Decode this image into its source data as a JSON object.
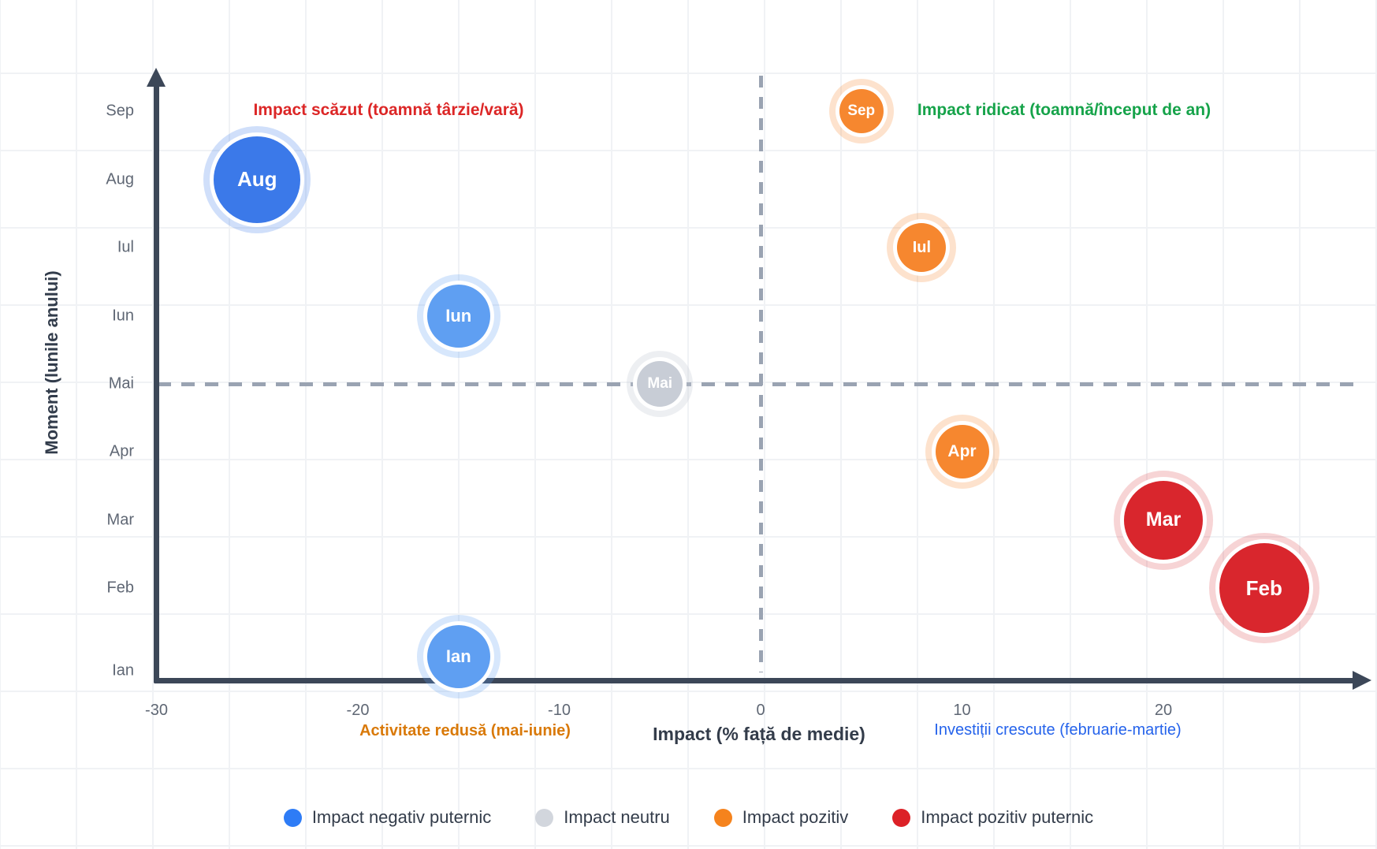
{
  "chart_data": {
    "type": "bubble",
    "xlabel": "Impact (% față de medie)",
    "ylabel": "Moment (lunile anului)",
    "xlim": [
      -30,
      30
    ],
    "x_ticks": [
      -30,
      -20,
      -10,
      0,
      10,
      20
    ],
    "y_categories": [
      "Ian",
      "Feb",
      "Mar",
      "Apr",
      "Mai",
      "Iun",
      "Iul",
      "Aug",
      "Sep"
    ],
    "reference_lines": {
      "vertical_at_x": 0,
      "horizontal_at_month": "Mai"
    },
    "annotations": {
      "top_left": {
        "text": "Impact scăzut (toamnă târzie/vară)",
        "color": "#dc2626"
      },
      "top_right": {
        "text": "Impact ridicat (toamnă/început de an)",
        "color": "#16a34a"
      },
      "bottom_left": {
        "text": "Activitate redusă (mai-iunie)",
        "color": "#d97908"
      },
      "bottom_right": {
        "text": "Investiții crescute (februarie-martie)",
        "color": "#2563eb"
      }
    },
    "points": [
      {
        "label": "Aug",
        "month": "Aug",
        "x": -25,
        "radius": 55,
        "fill": "#3b79e9",
        "halo": "#3b79e93d",
        "font": 26
      },
      {
        "label": "Iun",
        "month": "Iun",
        "x": -15,
        "radius": 40,
        "fill": "#5f9ff2",
        "halo": "#5f9ff240",
        "font": 22
      },
      {
        "label": "Mai",
        "month": "Mai",
        "x": -5,
        "radius": 29,
        "fill": "#c8cdd6",
        "halo": "#c8cdd652",
        "font": 19
      },
      {
        "label": "Ian",
        "month": "Ian",
        "x": -15,
        "radius": 40,
        "fill": "#5f9ff2",
        "halo": "#5f9ff240",
        "font": 22
      },
      {
        "label": "Sep",
        "month": "Sep",
        "x": 5,
        "radius": 28,
        "fill": "#f6872f",
        "halo": "#f6872f3d",
        "font": 19
      },
      {
        "label": "Iul",
        "month": "Iul",
        "x": 8,
        "radius": 31,
        "fill": "#f6872f",
        "halo": "#f6872f3d",
        "font": 20
      },
      {
        "label": "Apr",
        "month": "Apr",
        "x": 10,
        "radius": 34,
        "fill": "#f6872f",
        "halo": "#f6872f3d",
        "font": 21
      },
      {
        "label": "Mar",
        "month": "Mar",
        "x": 20,
        "radius": 50,
        "fill": "#d9262d",
        "halo": "#d9262d33",
        "font": 25
      },
      {
        "label": "Feb",
        "month": "Feb",
        "x": 25,
        "radius": 57,
        "fill": "#d9262d",
        "halo": "#d9262d33",
        "font": 26
      }
    ]
  },
  "legend": [
    {
      "label": "Impact negativ puternic",
      "color": "#2e7cf6"
    },
    {
      "label": "Impact neutru",
      "color": "#d2d6dd"
    },
    {
      "label": "Impact pozitiv",
      "color": "#f5831d"
    },
    {
      "label": "Impact pozitiv puternic",
      "color": "#dc2127"
    }
  ]
}
